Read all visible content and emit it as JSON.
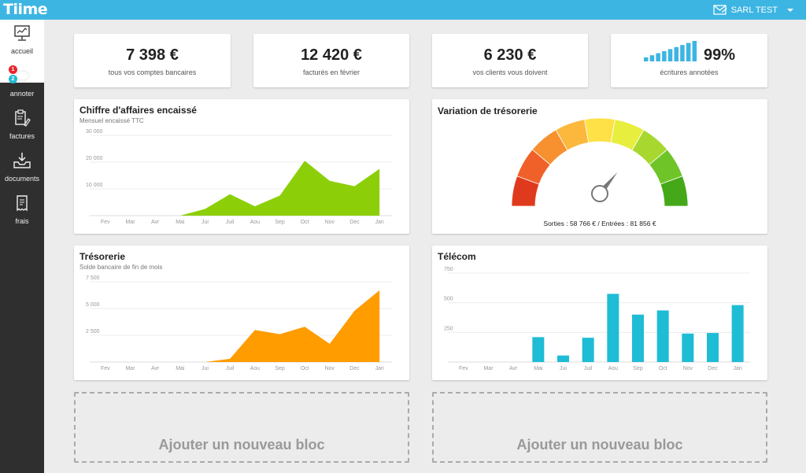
{
  "header": {
    "logo": "Tiime",
    "company": "SARL TEST",
    "icons": [
      "mail-icon",
      "caret-down-icon"
    ]
  },
  "sidebar": {
    "items": [
      {
        "label": "accueil",
        "icon": "dashboard-icon"
      },
      {
        "label": "annoter",
        "icon": "piggy-bank-icon",
        "badges": [
          "1",
          "2"
        ]
      },
      {
        "label": "factures",
        "icon": "clipboard-pen-icon"
      },
      {
        "label": "documents",
        "icon": "inbox-download-icon"
      },
      {
        "label": "frais",
        "icon": "receipt-icon"
      }
    ]
  },
  "kpis": [
    {
      "value": "7 398 €",
      "label": "tous vos comptes bancaires"
    },
    {
      "value": "12 420 €",
      "label": "facturés en février"
    },
    {
      "value": "6 230 €",
      "label": "vos clients vous doivent"
    },
    {
      "value": "99%",
      "label": "écritures annotées",
      "icon": "signal-bars-icon"
    }
  ],
  "revenue_card": {
    "title": "Chiffre d'affaires encaissé",
    "subtitle": "Mensuel encaissé TTC"
  },
  "treasury_card": {
    "title": "Trésorerie",
    "subtitle": "Solde bancaire de fin de mois"
  },
  "variation_card": {
    "title": "Variation de trésorerie",
    "caption": "Sorties : 58 766 € / Entrées : 81 856 €"
  },
  "telecom_card": {
    "title": "Télécom"
  },
  "add_blocks": [
    {
      "label": "Ajouter un nouveau bloc"
    },
    {
      "label": "Ajouter un nouveau bloc"
    }
  ],
  "colors": {
    "accent": "#3db5e3",
    "green": "#8ccf09",
    "orange": "#ff9c00",
    "cyan": "#1fbcd6"
  },
  "chart_data": [
    {
      "type": "area",
      "title": "Chiffre d'affaires encaissé",
      "subtitle": "Mensuel encaissé TTC",
      "categories": [
        "Fev",
        "Mar",
        "Avr",
        "Mai",
        "Jui",
        "Juil",
        "Aou",
        "Sep",
        "Oct",
        "Nov",
        "Dec",
        "Jan"
      ],
      "values": [
        0,
        0,
        0,
        0,
        2500,
        8000,
        3500,
        7500,
        20500,
        13000,
        11000,
        17500
      ],
      "yticks": [
        "10 000",
        "20 000",
        "30 000"
      ],
      "ytick_values": [
        10000,
        20000,
        30000
      ],
      "ylim": [
        0,
        30000
      ],
      "color": "#8ccf09"
    },
    {
      "type": "area",
      "title": "Trésorerie",
      "subtitle": "Solde bancaire de fin de mois",
      "categories": [
        "Fev",
        "Mar",
        "Avr",
        "Mai",
        "Jui",
        "Juil",
        "Aou",
        "Sep",
        "Oct",
        "Nov",
        "Dec",
        "Jan"
      ],
      "values": [
        0,
        0,
        0,
        0,
        0,
        300,
        3000,
        2600,
        3300,
        1700,
        4800,
        6700
      ],
      "yticks": [
        "2 500",
        "5 000",
        "7 500"
      ],
      "ytick_values": [
        2500,
        5000,
        7500
      ],
      "ylim": [
        0,
        7500
      ],
      "color": "#ff9c00"
    },
    {
      "type": "bar",
      "title": "Télécom",
      "categories": [
        "Fev",
        "Mar",
        "Avr",
        "Mai",
        "Jui",
        "Juil",
        "Aou",
        "Sep",
        "Oct",
        "Nov",
        "Dec",
        "Jan"
      ],
      "values": [
        0,
        0,
        0,
        210,
        55,
        205,
        575,
        400,
        435,
        240,
        245,
        480
      ],
      "yticks": [
        "250",
        "500",
        "750"
      ],
      "ytick_values": [
        250,
        500,
        750
      ],
      "ylim": [
        0,
        750
      ],
      "color": "#1fbcd6"
    },
    {
      "type": "gauge",
      "title": "Variation de trésorerie",
      "value": 0.72,
      "segments": [
        "#e03a1e",
        "#f0612a",
        "#f7902f",
        "#fbb83c",
        "#fde147",
        "#e8ee3d",
        "#a8d830",
        "#6fc428",
        "#45a818"
      ]
    }
  ],
  "signal_bars": [
    0.2,
    0.3,
    0.4,
    0.5,
    0.6,
    0.7,
    0.8,
    0.9,
    1.0
  ]
}
